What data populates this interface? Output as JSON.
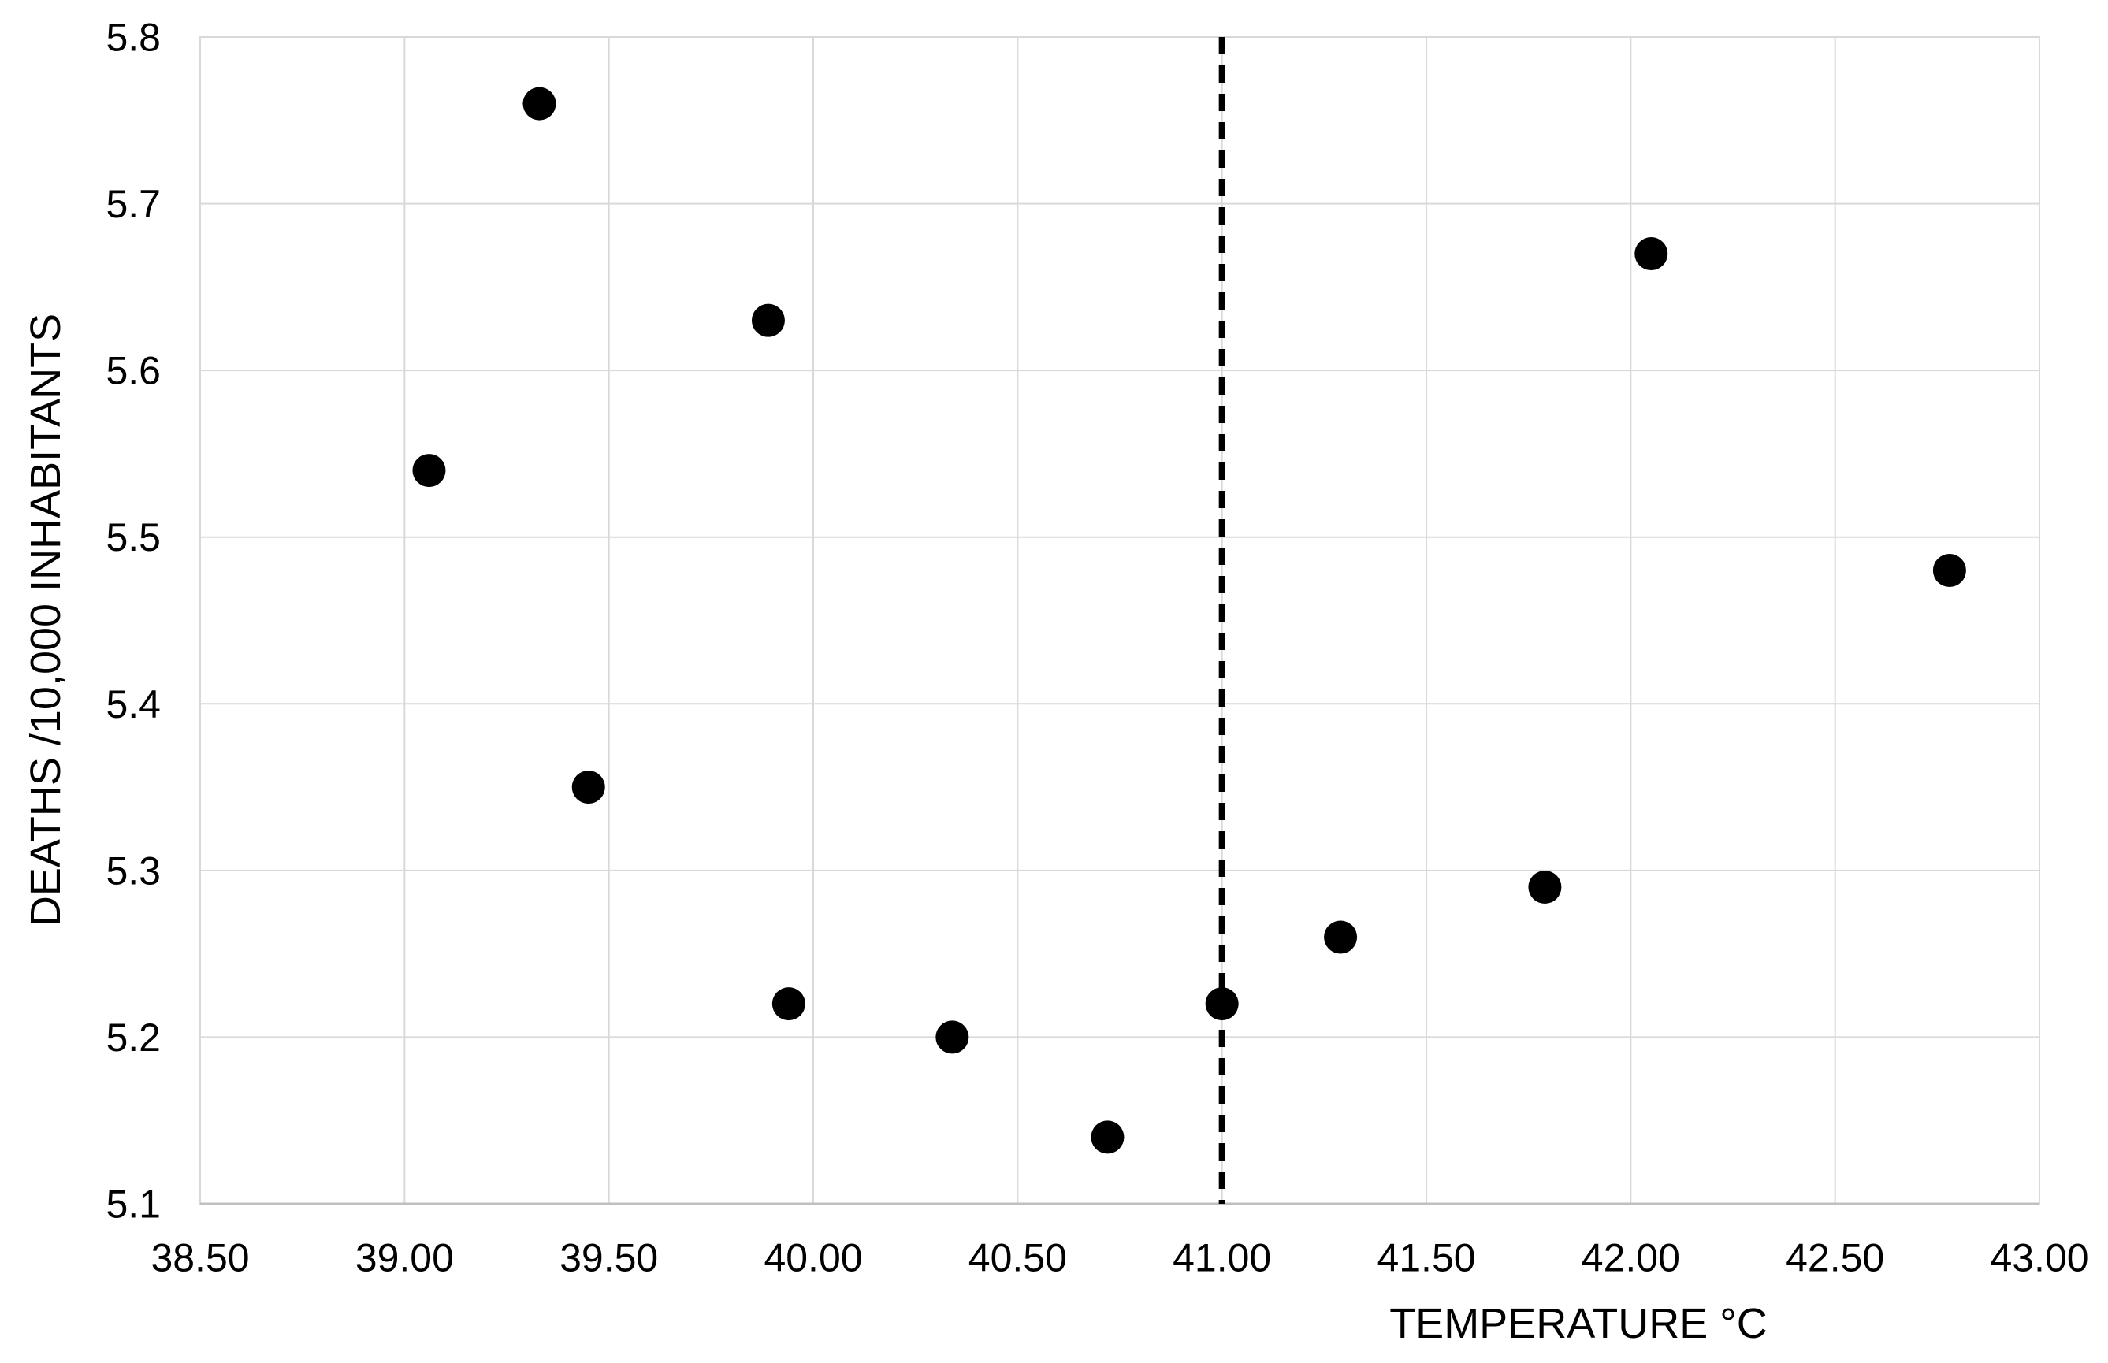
{
  "chart_data": {
    "type": "scatter",
    "title": "",
    "xlabel": "TEMPERATURE °C",
    "ylabel": "DEATHS /10,000 INHABITANTS",
    "xlim": [
      38.5,
      43.0
    ],
    "ylim": [
      5.1,
      5.8
    ],
    "grid": true,
    "legend": false,
    "x_ticks": [
      {
        "value": 38.5,
        "label": "38.50"
      },
      {
        "value": 39.0,
        "label": "39.00"
      },
      {
        "value": 39.5,
        "label": "39.50"
      },
      {
        "value": 40.0,
        "label": "40.00"
      },
      {
        "value": 40.5,
        "label": "40.50"
      },
      {
        "value": 41.0,
        "label": "41.00"
      },
      {
        "value": 41.5,
        "label": "41.50"
      },
      {
        "value": 42.0,
        "label": "42.00"
      },
      {
        "value": 42.5,
        "label": "42.50"
      },
      {
        "value": 43.0,
        "label": "43.00"
      }
    ],
    "y_ticks": [
      {
        "value": 5.8,
        "label": "5.8"
      },
      {
        "value": 5.7,
        "label": "5.7"
      },
      {
        "value": 5.6,
        "label": "5.6"
      },
      {
        "value": 5.5,
        "label": "5.5"
      },
      {
        "value": 5.4,
        "label": "5.4"
      },
      {
        "value": 5.3,
        "label": "5.3"
      },
      {
        "value": 5.2,
        "label": "5.2"
      },
      {
        "value": 5.1,
        "label": "5.1"
      }
    ],
    "reference_line": {
      "x": 41.0,
      "style": "dashed",
      "orientation": "vertical"
    },
    "points": [
      {
        "x": 39.06,
        "y": 5.54
      },
      {
        "x": 39.33,
        "y": 5.76
      },
      {
        "x": 39.45,
        "y": 5.35
      },
      {
        "x": 39.89,
        "y": 5.63
      },
      {
        "x": 39.94,
        "y": 5.22
      },
      {
        "x": 40.34,
        "y": 5.2
      },
      {
        "x": 40.72,
        "y": 5.14
      },
      {
        "x": 41.0,
        "y": 5.22
      },
      {
        "x": 41.29,
        "y": 5.26
      },
      {
        "x": 41.79,
        "y": 5.29
      },
      {
        "x": 42.05,
        "y": 5.67
      },
      {
        "x": 42.78,
        "y": 5.48
      }
    ],
    "marker": {
      "shape": "circle",
      "color": "#000000",
      "radius_px": 21
    },
    "colors": {
      "background": "#ffffff",
      "gridline": "#d9d9d9",
      "axis_line": "#bfbfbf",
      "text": "#000000",
      "reference_line": "#000000"
    },
    "tick_font_px": 50
  }
}
